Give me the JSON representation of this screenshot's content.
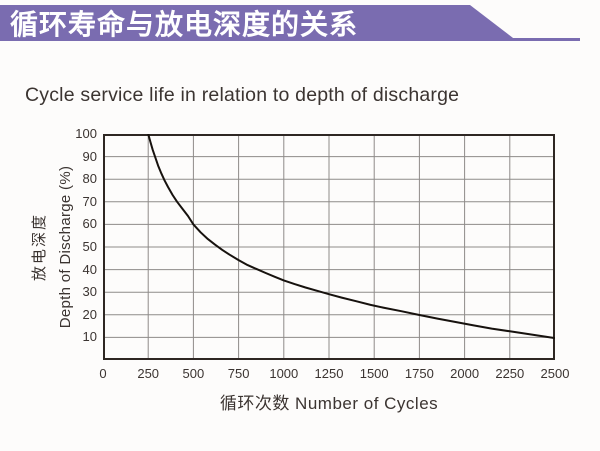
{
  "banner": {
    "title": "循环寿命与放电深度的关系"
  },
  "colors": {
    "banner_purple": "#7a6cb0",
    "text_ink": "#3b3431",
    "gridline": "#8e8b89",
    "plot_frame": "#2e2723",
    "curve": "#17120e",
    "background": "#fdfcfb"
  },
  "chart_data": {
    "type": "line",
    "title": "Cycle service life in relation to depth of discharge",
    "xlabel": "循环次数 Number of Cycles",
    "ylabel_zh": "放电深度",
    "ylabel_en": "Depth of Discharge (%)",
    "xlim": [
      0,
      2500
    ],
    "ylim": [
      0,
      100
    ],
    "x_ticks": [
      0,
      250,
      500,
      750,
      1000,
      1250,
      1500,
      1750,
      2000,
      2250,
      2500
    ],
    "y_ticks": [
      10,
      20,
      30,
      40,
      50,
      60,
      70,
      80,
      90,
      100
    ],
    "grid": true,
    "legend": false,
    "series": [
      {
        "name": "depth-of-discharge-vs-cycles",
        "points": [
          [
            250,
            100
          ],
          [
            262,
            96.5
          ],
          [
            275,
            93
          ],
          [
            290,
            89.5
          ],
          [
            305,
            86
          ],
          [
            320,
            83
          ],
          [
            340,
            79.5
          ],
          [
            360,
            76.5
          ],
          [
            385,
            73
          ],
          [
            410,
            70
          ],
          [
            440,
            66.8
          ],
          [
            470,
            63.7
          ],
          [
            500,
            60
          ],
          [
            540,
            56.5
          ],
          [
            580,
            53.5
          ],
          [
            620,
            51
          ],
          [
            660,
            48.7
          ],
          [
            700,
            46.6
          ],
          [
            750,
            44.2
          ],
          [
            800,
            42
          ],
          [
            850,
            40.2
          ],
          [
            900,
            38.5
          ],
          [
            950,
            36.8
          ],
          [
            1000,
            35.2
          ],
          [
            1060,
            33.6
          ],
          [
            1120,
            32.1
          ],
          [
            1180,
            30.7
          ],
          [
            1250,
            29.1
          ],
          [
            1320,
            27.6
          ],
          [
            1400,
            26
          ],
          [
            1480,
            24.4
          ],
          [
            1550,
            23.2
          ],
          [
            1650,
            21.6
          ],
          [
            1750,
            19.9
          ],
          [
            1850,
            18.3
          ],
          [
            1950,
            16.8
          ],
          [
            2050,
            15.3
          ],
          [
            2150,
            13.9
          ],
          [
            2250,
            12.7
          ],
          [
            2350,
            11.5
          ],
          [
            2450,
            10.3
          ],
          [
            2500,
            9.7
          ]
        ]
      }
    ]
  }
}
